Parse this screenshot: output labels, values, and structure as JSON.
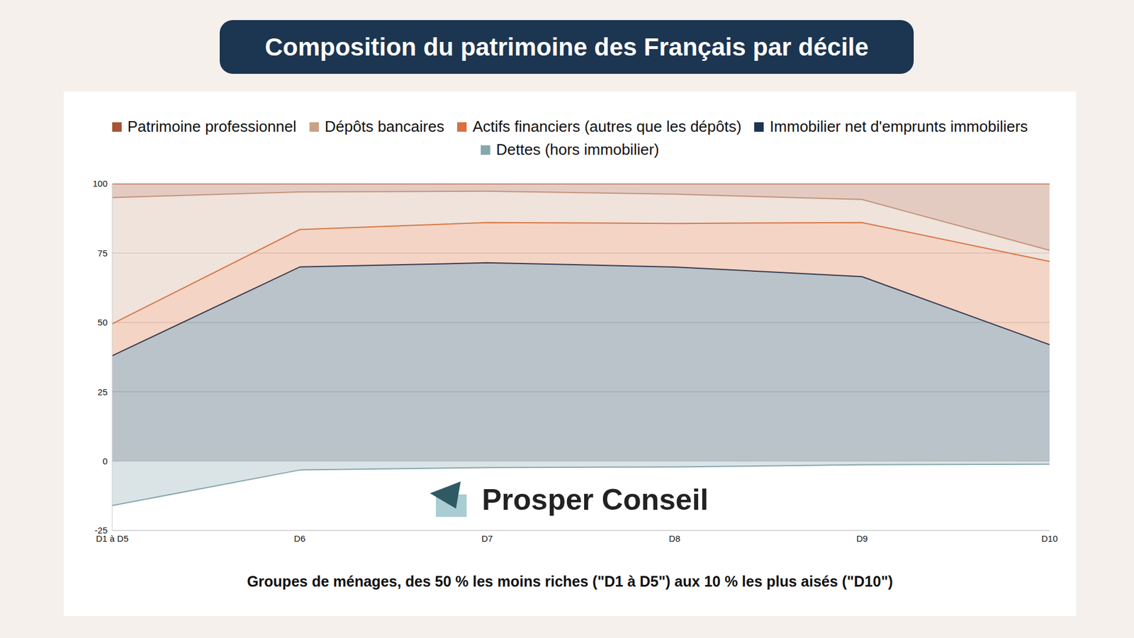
{
  "chart_data": {
    "type": "area",
    "title": "Composition du patrimoine des Français par décile",
    "x_label": "Groupes de ménages, des 50 % les moins riches (\"D1 à D5\") aux 10 % les plus aisés (\"D10\")",
    "watermark": "Prosper Conseil",
    "stacked": true,
    "grid": true,
    "legend": "top",
    "categories": [
      "D1 à D5",
      "D6",
      "D7",
      "D8",
      "D9",
      "D10"
    ],
    "series": [
      {
        "name": "Patrimoine professionnel",
        "color": "#a65435",
        "values": [
          5,
          3,
          2.7,
          3.8,
          5.7,
          24
        ]
      },
      {
        "name": "Dépôts bancaires",
        "color": "#c9a189",
        "values": [
          45.5,
          13.5,
          11.3,
          10.5,
          8.3,
          4
        ]
      },
      {
        "name": "Actifs financiers (autres que les dépôts)",
        "color": "#d9703f",
        "values": [
          11.5,
          13.5,
          14.5,
          15.7,
          19.5,
          30
        ]
      },
      {
        "name": "Immobilier net d'emprunts immobiliers",
        "color": "#1c3550",
        "values": [
          38,
          70,
          71.5,
          70,
          66.5,
          42
        ]
      },
      {
        "name": "Dettes (hors immobilier)",
        "color": "#86a7ad",
        "values": [
          -16,
          -3.2,
          -2.3,
          -2.1,
          -1.3,
          -1.1
        ]
      }
    ],
    "ylim": [
      -25,
      100
    ],
    "yticks": [
      -25,
      0,
      25,
      50,
      75,
      100
    ]
  }
}
